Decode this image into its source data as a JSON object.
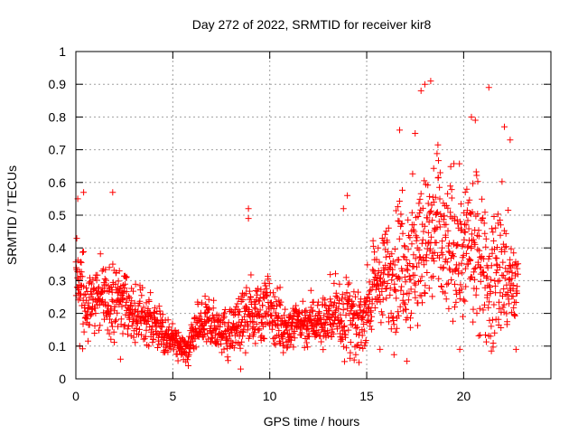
{
  "chart_data": {
    "type": "scatter",
    "title": "Day 272 of 2022, SRMTID for receiver kir8",
    "xlabel": "GPS time / hours",
    "ylabel": "SRMTID / TECUs",
    "xlim": [
      0,
      24.5
    ],
    "ylim": [
      0,
      1
    ],
    "xticks": [
      0,
      5,
      10,
      15,
      20
    ],
    "xtick_labels": [
      "0",
      "5",
      "10",
      "15",
      "20"
    ],
    "yticks": [
      0,
      0.1,
      0.2,
      0.3,
      0.4,
      0.5,
      0.6,
      0.7,
      0.8,
      0.9,
      1
    ],
    "ytick_labels": [
      "0",
      "0.1",
      "0.2",
      "0.3",
      "0.4",
      "0.5",
      "0.6",
      "0.7",
      "0.8",
      "0.9",
      "1"
    ],
    "grid": true,
    "marker": "+",
    "color": "#ff0000",
    "x_start": 0,
    "x_end": 22.8,
    "point_count": 1800,
    "trend": {
      "x": [
        0,
        0.5,
        1,
        2,
        3,
        4,
        5,
        5.7,
        6.5,
        8,
        9,
        10,
        11,
        12,
        13,
        14,
        14.5,
        15,
        16,
        17,
        18,
        19,
        20,
        21,
        22,
        22.8
      ],
      "mid": [
        0.33,
        0.27,
        0.24,
        0.25,
        0.22,
        0.17,
        0.12,
        0.09,
        0.16,
        0.15,
        0.2,
        0.21,
        0.16,
        0.17,
        0.18,
        0.2,
        0.14,
        0.22,
        0.33,
        0.38,
        0.41,
        0.4,
        0.38,
        0.36,
        0.33,
        0.27
      ],
      "spread": [
        0.16,
        0.14,
        0.11,
        0.12,
        0.1,
        0.08,
        0.05,
        0.04,
        0.08,
        0.08,
        0.1,
        0.1,
        0.08,
        0.08,
        0.09,
        0.16,
        0.08,
        0.12,
        0.2,
        0.22,
        0.26,
        0.24,
        0.23,
        0.22,
        0.22,
        0.12
      ]
    },
    "outliers": [
      {
        "x": 18.0,
        "y": 0.9
      },
      {
        "x": 17.8,
        "y": 0.88
      },
      {
        "x": 18.3,
        "y": 0.91
      },
      {
        "x": 21.3,
        "y": 0.89
      },
      {
        "x": 20.4,
        "y": 0.8
      },
      {
        "x": 20.6,
        "y": 0.79
      },
      {
        "x": 22.1,
        "y": 0.77
      },
      {
        "x": 16.7,
        "y": 0.76
      },
      {
        "x": 17.5,
        "y": 0.75
      },
      {
        "x": 22.4,
        "y": 0.73
      },
      {
        "x": 8.9,
        "y": 0.49
      },
      {
        "x": 8.9,
        "y": 0.52
      },
      {
        "x": 14.0,
        "y": 0.56
      },
      {
        "x": 13.8,
        "y": 0.52
      },
      {
        "x": 0.4,
        "y": 0.57
      },
      {
        "x": 1.9,
        "y": 0.57
      },
      {
        "x": 0.1,
        "y": 0.55
      },
      {
        "x": 0.2,
        "y": 0.1
      },
      {
        "x": 19.8,
        "y": 0.09
      },
      {
        "x": 2.3,
        "y": 0.06
      },
      {
        "x": 8.5,
        "y": 0.03
      },
      {
        "x": 5.8,
        "y": 0.04
      },
      {
        "x": 14.6,
        "y": 0.05
      },
      {
        "x": 10.7,
        "y": 0.08
      },
      {
        "x": 22.7,
        "y": 0.09
      }
    ]
  }
}
